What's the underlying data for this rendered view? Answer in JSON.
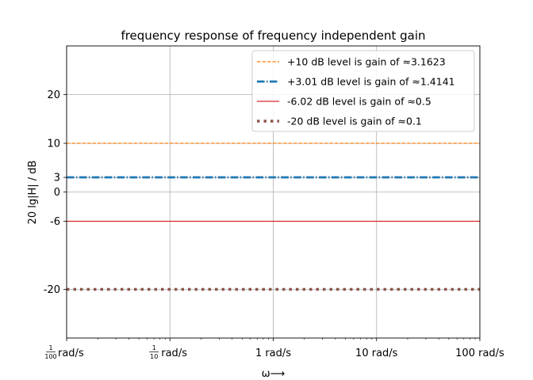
{
  "chart_data": {
    "type": "line",
    "title": "frequency response of frequency independent gain",
    "ylabel": "20 lg|H| / dB",
    "xlabel": "ω⟶",
    "x_scale": "log",
    "xlim": [
      0.01,
      100
    ],
    "ylim": [
      -30,
      30
    ],
    "x_ticks": [
      {
        "value": 0.01,
        "label_num": "1",
        "label_den": "100",
        "label_unit": "rad/s"
      },
      {
        "value": 0.1,
        "label_num": "1",
        "label_den": "10",
        "label_unit": "rad/s"
      },
      {
        "value": 1,
        "label": "1 rad/s"
      },
      {
        "value": 10,
        "label": "10 rad/s"
      },
      {
        "value": 100,
        "label": "100 rad/s"
      }
    ],
    "y_ticks": [
      -20,
      -6,
      0,
      3,
      10,
      20
    ],
    "grid": true,
    "legend_position": "top-right",
    "series": [
      {
        "name": "+10 dB level is gain of ≈3.1623",
        "value_db": 10,
        "color": "#ff7f0e",
        "style": "dashed-thin"
      },
      {
        "name": "+3.01 dB level is gain of ≈1.4141",
        "value_db": 3.01,
        "color": "#1f77b4",
        "style": "dashdot-thick"
      },
      {
        "name": "-6.02 dB level is gain of ≈0.5",
        "value_db": -6.02,
        "color": "#d62728",
        "style": "solid"
      },
      {
        "name": "-20 dB level is gain of ≈0.1",
        "value_db": -20,
        "color": "#8c564b",
        "style": "dotted-thick"
      }
    ]
  }
}
